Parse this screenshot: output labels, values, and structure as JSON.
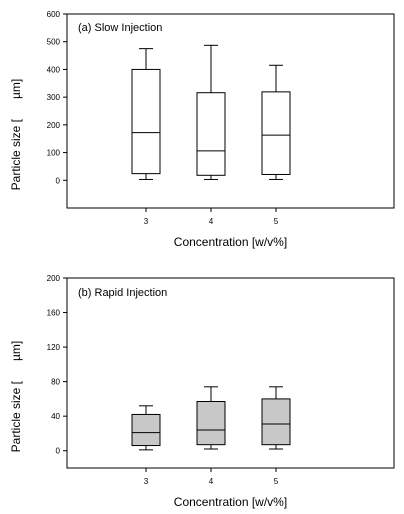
{
  "chart_data": [
    {
      "type": "box",
      "title": "(a) Slow Injection",
      "xlabel": "Concentration [w/v%]",
      "ylabel_left": "Particle size [",
      "ylabel_right": "µm]",
      "ylim": [
        -100,
        600
      ],
      "yticks": [
        0,
        100,
        200,
        300,
        400,
        500,
        600
      ],
      "categories": [
        "3",
        "4",
        "5"
      ],
      "fill": "#ffffff",
      "boxes": [
        {
          "whisker_low": 3,
          "q1": 24,
          "median": 172,
          "q3": 400,
          "whisker_high": 475
        },
        {
          "whisker_low": 3,
          "q1": 18,
          "median": 106,
          "q3": 316,
          "whisker_high": 487
        },
        {
          "whisker_low": 3,
          "q1": 21,
          "median": 163,
          "q3": 319,
          "whisker_high": 415
        }
      ]
    },
    {
      "type": "box",
      "title": "(b) Rapid Injection",
      "xlabel": "Concentration [w/v%]",
      "ylabel_left": "Particle size [",
      "ylabel_right": "µm]",
      "ylim": [
        -20,
        200
      ],
      "yticks": [
        0,
        40,
        80,
        120,
        160,
        200
      ],
      "categories": [
        "3",
        "4",
        "5"
      ],
      "fill": "#c8c8c8",
      "boxes": [
        {
          "whisker_low": 1,
          "q1": 6,
          "median": 21,
          "q3": 42,
          "whisker_high": 52
        },
        {
          "whisker_low": 2,
          "q1": 7,
          "median": 24,
          "q3": 57,
          "whisker_high": 74
        },
        {
          "whisker_low": 2,
          "q1": 7,
          "median": 31,
          "q3": 60,
          "whisker_high": 74
        }
      ]
    }
  ]
}
